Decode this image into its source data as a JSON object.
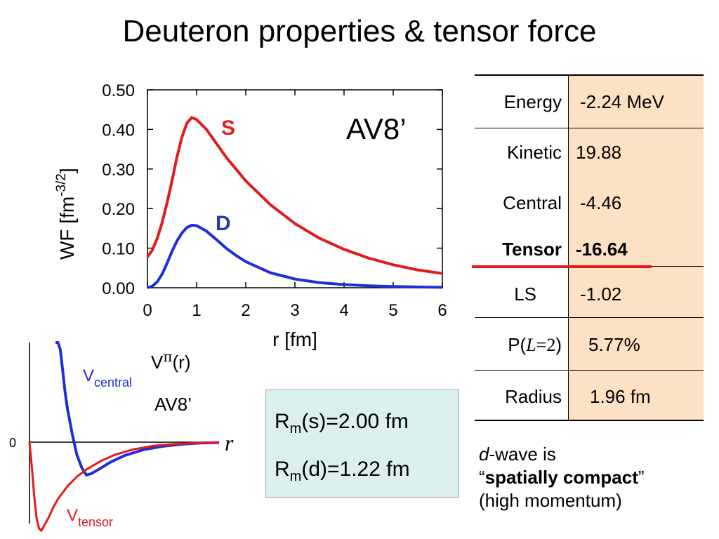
{
  "slide": {
    "title": "Deuteron properties & tensor force"
  },
  "colors": {
    "s_wave": "#e31a1c",
    "d_wave": "#1f2fd8",
    "table_value_bg": "#fde1c4",
    "box_bg": "#dcefef",
    "underline": "#e31a1c"
  },
  "chart_data": [
    {
      "type": "line",
      "xlabel": "r [fm]",
      "ylabel": "WF [fm",
      "ylabel_exponent": "-3/2",
      "ylabel_close": "]",
      "xlim": [
        0,
        6
      ],
      "ylim": [
        0,
        0.5
      ],
      "xticks": [
        "0",
        "1",
        "2",
        "3",
        "4",
        "5",
        "6"
      ],
      "yticks": [
        "0.00",
        "0.10",
        "0.20",
        "0.30",
        "0.40",
        "0.50"
      ],
      "grid": false,
      "annotation": "AV8’",
      "series": [
        {
          "name": "S",
          "x": [
            0,
            0.1,
            0.2,
            0.3,
            0.4,
            0.5,
            0.6,
            0.7,
            0.8,
            0.9,
            1.0,
            1.2,
            1.4,
            1.6,
            1.8,
            2.0,
            2.5,
            3.0,
            3.5,
            4.0,
            4.5,
            5.0,
            5.5,
            6.0
          ],
          "y": [
            0.078,
            0.095,
            0.125,
            0.165,
            0.215,
            0.27,
            0.33,
            0.38,
            0.415,
            0.43,
            0.425,
            0.4,
            0.365,
            0.33,
            0.3,
            0.27,
            0.21,
            0.162,
            0.125,
            0.097,
            0.075,
            0.058,
            0.045,
            0.036
          ]
        },
        {
          "name": "D",
          "x": [
            0,
            0.1,
            0.2,
            0.3,
            0.4,
            0.5,
            0.6,
            0.7,
            0.8,
            0.9,
            1.0,
            1.2,
            1.4,
            1.6,
            1.8,
            2.0,
            2.5,
            3.0,
            3.5,
            4.0,
            4.5,
            5.0,
            5.5,
            6.0
          ],
          "y": [
            0.0,
            0.004,
            0.015,
            0.035,
            0.062,
            0.092,
            0.118,
            0.138,
            0.152,
            0.158,
            0.157,
            0.143,
            0.122,
            0.1,
            0.082,
            0.066,
            0.038,
            0.022,
            0.013,
            0.008,
            0.005,
            0.003,
            0.002,
            0.001
          ]
        }
      ]
    },
    {
      "type": "line",
      "title": "V",
      "title_sup": "π",
      "title_suffix": "(r)",
      "annotation": "AV8’",
      "xlabel": "r",
      "ytick": "0",
      "grid": false,
      "series": [
        {
          "name": "V",
          "name_sub": "central",
          "x": [
            0.55,
            0.6,
            0.65,
            0.7,
            0.75,
            0.8,
            0.9,
            1.0,
            1.1,
            1.2,
            1.3,
            1.5,
            1.7,
            2.0,
            2.4,
            2.8,
            3.2,
            3.6,
            4.0
          ],
          "y": [
            3.4,
            2.8,
            2.2,
            1.7,
            1.2,
            0.8,
            0.2,
            -0.3,
            -0.6,
            -0.78,
            -0.75,
            -0.62,
            -0.48,
            -0.32,
            -0.18,
            -0.1,
            -0.05,
            -0.02,
            -0.01
          ]
        },
        {
          "name": "V",
          "name_sub": "tensor",
          "x": [
            0.0,
            0.05,
            0.1,
            0.15,
            0.2,
            0.25,
            0.3,
            0.4,
            0.5,
            0.6,
            0.7,
            0.8,
            1.0,
            1.2,
            1.5,
            1.8,
            2.2,
            2.6,
            3.0,
            3.5,
            4.0
          ],
          "y": [
            0.0,
            -0.6,
            -1.3,
            -1.8,
            -2.05,
            -2.1,
            -2.0,
            -1.8,
            -1.55,
            -1.35,
            -1.2,
            -1.05,
            -0.82,
            -0.65,
            -0.45,
            -0.3,
            -0.17,
            -0.09,
            -0.05,
            -0.02,
            -0.01
          ]
        }
      ]
    }
  ],
  "table": {
    "rows": [
      {
        "label": "Energy",
        "value": "-2.24 MeV"
      },
      {
        "label": "Kinetic",
        "value": "19.88"
      },
      {
        "label": "Central",
        "value": "-4.46"
      },
      {
        "label": "Tensor",
        "value": "-16.64"
      },
      {
        "label": "LS",
        "value": "-1.02"
      },
      {
        "label": "P(",
        "label_italic": "L",
        "label_mid": "=2",
        "label_close": ")",
        "value": "5.77%"
      },
      {
        "label": "Radius",
        "value": "1.96 fm"
      }
    ]
  },
  "radii_box": {
    "line1": {
      "pre": "R",
      "sub": "m",
      "post": "(s)=2.00 fm"
    },
    "line2": {
      "pre": "R",
      "sub": "m",
      "post": "(d)=1.22 fm"
    }
  },
  "dwave_note": {
    "italic": "d",
    "rest": "-wave is",
    "open_quote": "“",
    "bold": "spatially compact",
    "close_quote": "”",
    "line3": "(high momentum)"
  }
}
